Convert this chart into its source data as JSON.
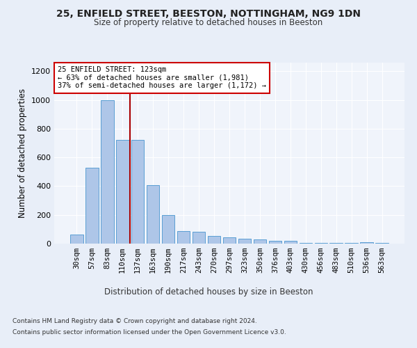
{
  "title1": "25, ENFIELD STREET, BEESTON, NOTTINGHAM, NG9 1DN",
  "title2": "Size of property relative to detached houses in Beeston",
  "xlabel": "Distribution of detached houses by size in Beeston",
  "ylabel": "Number of detached properties",
  "categories": [
    "30sqm",
    "57sqm",
    "83sqm",
    "110sqm",
    "137sqm",
    "163sqm",
    "190sqm",
    "217sqm",
    "243sqm",
    "270sqm",
    "297sqm",
    "323sqm",
    "350sqm",
    "376sqm",
    "403sqm",
    "430sqm",
    "456sqm",
    "483sqm",
    "510sqm",
    "536sqm",
    "563sqm"
  ],
  "values": [
    65,
    530,
    1000,
    720,
    720,
    405,
    200,
    85,
    80,
    55,
    45,
    35,
    30,
    18,
    18,
    5,
    5,
    5,
    5,
    12,
    5
  ],
  "bar_color": "#aec6e8",
  "bar_edge_color": "#5a9fd4",
  "annotation_title": "25 ENFIELD STREET: 123sqm",
  "annotation_line1": "← 63% of detached houses are smaller (1,981)",
  "annotation_line2": "37% of semi-detached houses are larger (1,172) →",
  "annotation_box_color": "#ffffff",
  "annotation_border_color": "#cc0000",
  "vline_color": "#aa0000",
  "vline_x_index": 3,
  "ylim": [
    0,
    1260
  ],
  "yticks": [
    0,
    200,
    400,
    600,
    800,
    1000,
    1200
  ],
  "footer1": "Contains HM Land Registry data © Crown copyright and database right 2024.",
  "footer2": "Contains public sector information licensed under the Open Government Licence v3.0.",
  "bg_color": "#e8eef8",
  "plot_bg_color": "#f0f4fb"
}
